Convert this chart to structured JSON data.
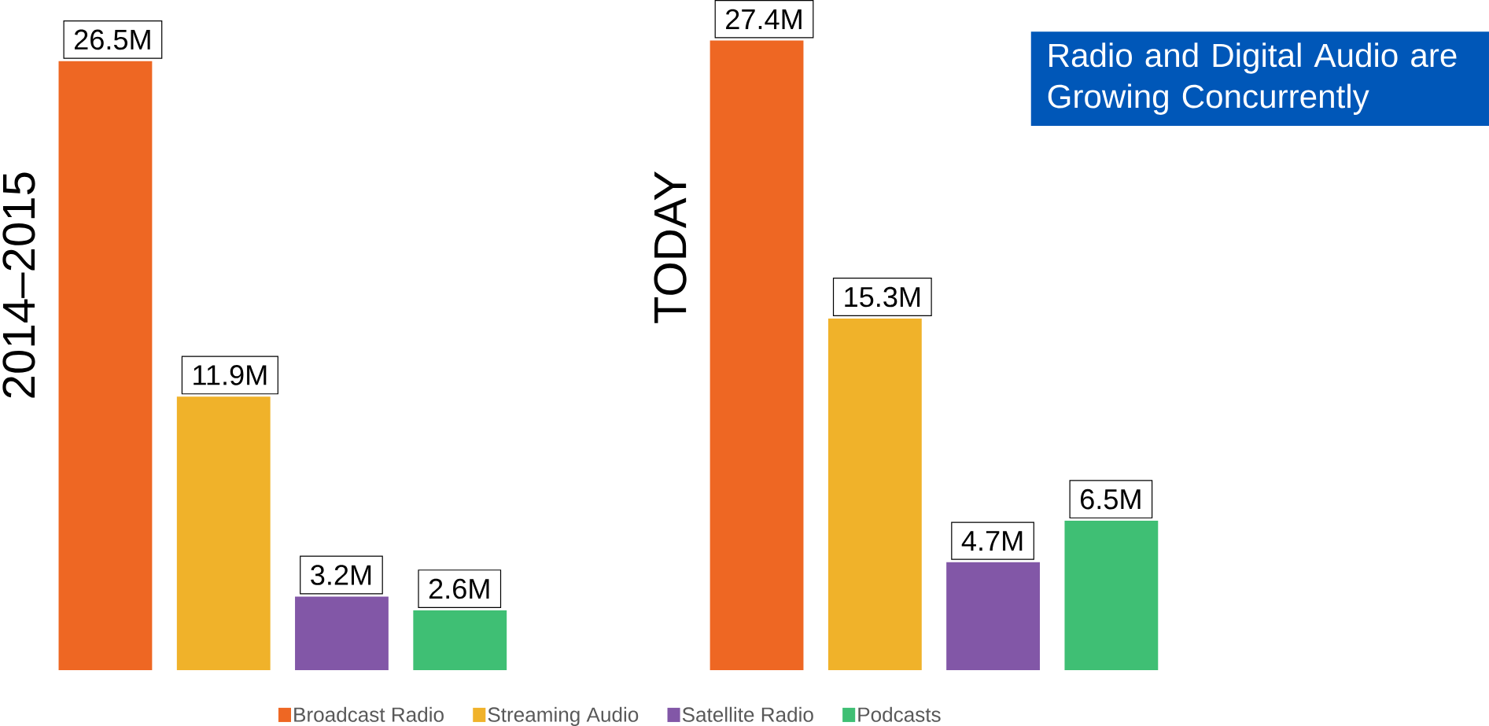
{
  "chart_data": {
    "type": "bar",
    "title": "Radio and Digital Audio are Growing Concurrently",
    "categories": [
      null,
      null
    ],
    "annotations": [
      "2014–2015",
      "TODAY"
    ],
    "series": [
      {
        "name": "Broadcast Radio",
        "color": "#ee6723",
        "values": [
          26.5,
          27.4
        ],
        "value_labels": [
          "26.5M",
          "27.4M"
        ]
      },
      {
        "name": "Streaming Audio",
        "color": "#f0b22a",
        "values": [
          11.9,
          15.3
        ],
        "value_labels": [
          "11.9M",
          "15.3M"
        ]
      },
      {
        "name": "Satellite Radio",
        "color": "#8257a7",
        "values": [
          3.2,
          4.7
        ],
        "value_labels": [
          "3.2M",
          "4.7M"
        ]
      },
      {
        "name": "Podcasts",
        "color": "#3fbf74",
        "values": [
          2.6,
          6.5
        ],
        "value_labels": [
          "2.6M",
          "6.5M"
        ]
      }
    ],
    "legend": "bottom"
  }
}
